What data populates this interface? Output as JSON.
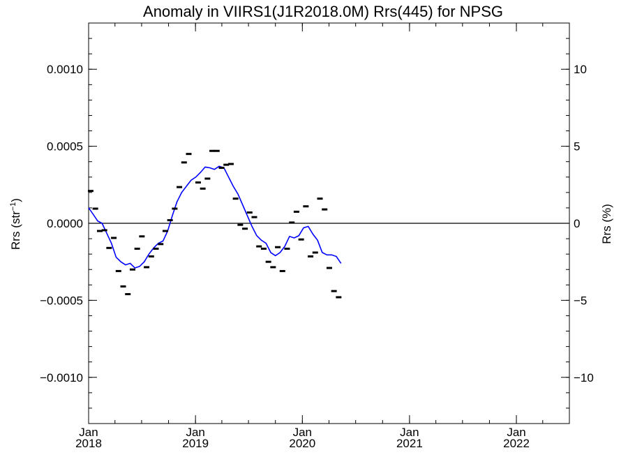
{
  "chart_data": {
    "type": "line",
    "title": "Anomaly in VIIRS1(J1R2018.0M) Rrs(445) for NPSG",
    "ylabel_left_base": "Rrs (str",
    "ylabel_left_sup": "−1",
    "ylabel_left_close": ")",
    "ylabel_right": "Rrs (%)",
    "x_range": [
      "2018-01-01",
      "2022-07-01"
    ],
    "ylim_left": [
      -0.0013,
      0.0013
    ],
    "ylim_right": [
      -13,
      13
    ],
    "x_ticks": [
      {
        "date": "2018-01-01",
        "month": "Jan",
        "year": "2018"
      },
      {
        "date": "2019-01-01",
        "month": "Jan",
        "year": "2019"
      },
      {
        "date": "2020-01-01",
        "month": "Jan",
        "year": "2020"
      },
      {
        "date": "2021-01-01",
        "month": "Jan",
        "year": "2021"
      },
      {
        "date": "2022-01-01",
        "month": "Jan",
        "year": "2022"
      }
    ],
    "y_ticks_left": [
      {
        "value": 0.001,
        "label": "0.0010"
      },
      {
        "value": 0.0005,
        "label": "0.0005"
      },
      {
        "value": 0.0,
        "label": "0.0000"
      },
      {
        "value": -0.0005,
        "label": "−0.0005"
      },
      {
        "value": -0.001,
        "label": "−0.0010"
      }
    ],
    "y_ticks_right": [
      {
        "value": 10,
        "label": "10"
      },
      {
        "value": 5,
        "label": "5"
      },
      {
        "value": 0,
        "label": "0"
      },
      {
        "value": -5,
        "label": "−5"
      },
      {
        "value": -10,
        "label": "−10"
      }
    ],
    "zero_line": true,
    "grid": false,
    "series": [
      {
        "style": "markers",
        "color": "#000000",
        "points": [
          {
            "x": "2018-01-08",
            "y": 0.00021
          },
          {
            "x": "2018-01-24",
            "y": 9.5e-05
          },
          {
            "x": "2018-02-08",
            "y": -5e-05
          },
          {
            "x": "2018-02-24",
            "y": -4.5e-05
          },
          {
            "x": "2018-03-12",
            "y": -0.00016
          },
          {
            "x": "2018-03-28",
            "y": -9.5e-05
          },
          {
            "x": "2018-04-13",
            "y": -0.00031
          },
          {
            "x": "2018-04-29",
            "y": -0.00041
          },
          {
            "x": "2018-05-15",
            "y": -0.00046
          },
          {
            "x": "2018-05-31",
            "y": -0.0003
          },
          {
            "x": "2018-06-16",
            "y": -0.000165
          },
          {
            "x": "2018-07-02",
            "y": -8.5e-05
          },
          {
            "x": "2018-07-18",
            "y": -0.000285
          },
          {
            "x": "2018-08-03",
            "y": -0.000215
          },
          {
            "x": "2018-08-19",
            "y": -0.000165
          },
          {
            "x": "2018-09-04",
            "y": -0.000135
          },
          {
            "x": "2018-09-20",
            "y": -5e-05
          },
          {
            "x": "2018-10-06",
            "y": 2e-05
          },
          {
            "x": "2018-10-22",
            "y": 9.5e-05
          },
          {
            "x": "2018-11-07",
            "y": 0.000235
          },
          {
            "x": "2018-11-23",
            "y": 0.000395
          },
          {
            "x": "2018-12-09",
            "y": 0.00045
          },
          {
            "x": "2019-01-10",
            "y": 0.000265
          },
          {
            "x": "2019-01-26",
            "y": 0.000225
          },
          {
            "x": "2019-02-11",
            "y": 0.00029
          },
          {
            "x": "2019-02-27",
            "y": 0.00047
          },
          {
            "x": "2019-03-15",
            "y": 0.00047
          },
          {
            "x": "2019-03-31",
            "y": 0.00036
          },
          {
            "x": "2019-04-16",
            "y": 0.00038
          },
          {
            "x": "2019-05-02",
            "y": 0.000385
          },
          {
            "x": "2019-05-18",
            "y": 0.00016
          },
          {
            "x": "2019-06-03",
            "y": -1e-05
          },
          {
            "x": "2019-06-19",
            "y": -3.5e-05
          },
          {
            "x": "2019-07-05",
            "y": 7e-05
          },
          {
            "x": "2019-07-21",
            "y": 4e-05
          },
          {
            "x": "2019-08-06",
            "y": -0.00015
          },
          {
            "x": "2019-08-22",
            "y": -0.000165
          },
          {
            "x": "2019-09-07",
            "y": -0.00025
          },
          {
            "x": "2019-09-23",
            "y": -0.000285
          },
          {
            "x": "2019-10-09",
            "y": -0.000155
          },
          {
            "x": "2019-10-25",
            "y": -0.00031
          },
          {
            "x": "2019-11-10",
            "y": -0.000165
          },
          {
            "x": "2019-11-26",
            "y": 5e-06
          },
          {
            "x": "2019-12-12",
            "y": 7.5e-05
          },
          {
            "x": "2019-12-28",
            "y": -0.000105
          },
          {
            "x": "2020-01-13",
            "y": 0.00011
          },
          {
            "x": "2020-01-29",
            "y": -0.000215
          },
          {
            "x": "2020-02-14",
            "y": -0.00019
          },
          {
            "x": "2020-03-01",
            "y": 0.00016
          },
          {
            "x": "2020-03-17",
            "y": 9e-05
          },
          {
            "x": "2020-04-02",
            "y": -0.00029
          },
          {
            "x": "2020-04-18",
            "y": -0.00044
          },
          {
            "x": "2020-05-04",
            "y": -0.00048
          }
        ]
      },
      {
        "style": "line",
        "color": "#0000ff",
        "points": [
          {
            "x": "2018-01-01",
            "y": 0.0001
          },
          {
            "x": "2018-01-16",
            "y": 6e-05
          },
          {
            "x": "2018-02-01",
            "y": 1.5e-05
          },
          {
            "x": "2018-02-16",
            "y": 0.0
          },
          {
            "x": "2018-03-04",
            "y": -6.5e-05
          },
          {
            "x": "2018-03-20",
            "y": -0.00013
          },
          {
            "x": "2018-04-05",
            "y": -0.00022
          },
          {
            "x": "2018-04-21",
            "y": -0.00025
          },
          {
            "x": "2018-05-07",
            "y": -0.00027
          },
          {
            "x": "2018-05-23",
            "y": -0.00026
          },
          {
            "x": "2018-06-08",
            "y": -0.00029
          },
          {
            "x": "2018-06-24",
            "y": -0.00028
          },
          {
            "x": "2018-07-10",
            "y": -0.00025
          },
          {
            "x": "2018-07-26",
            "y": -0.0002
          },
          {
            "x": "2018-08-11",
            "y": -0.00016
          },
          {
            "x": "2018-08-27",
            "y": -0.00013
          },
          {
            "x": "2018-09-12",
            "y": -0.000115
          },
          {
            "x": "2018-09-28",
            "y": -5e-05
          },
          {
            "x": "2018-10-14",
            "y": 5e-05
          },
          {
            "x": "2018-10-30",
            "y": 0.00014
          },
          {
            "x": "2018-11-15",
            "y": 0.0002
          },
          {
            "x": "2018-12-01",
            "y": 0.00024
          },
          {
            "x": "2018-12-17",
            "y": 0.00028
          },
          {
            "x": "2019-01-02",
            "y": 0.0003
          },
          {
            "x": "2019-01-18",
            "y": 0.00033
          },
          {
            "x": "2019-02-03",
            "y": 0.000365
          },
          {
            "x": "2019-02-19",
            "y": 0.00036
          },
          {
            "x": "2019-03-07",
            "y": 0.00035
          },
          {
            "x": "2019-03-23",
            "y": 0.00037
          },
          {
            "x": "2019-04-08",
            "y": 0.00036
          },
          {
            "x": "2019-04-24",
            "y": 0.0003
          },
          {
            "x": "2019-05-10",
            "y": 0.00024
          },
          {
            "x": "2019-05-26",
            "y": 0.00019
          },
          {
            "x": "2019-06-11",
            "y": 0.00012
          },
          {
            "x": "2019-06-27",
            "y": 5e-05
          },
          {
            "x": "2019-07-13",
            "y": -2e-05
          },
          {
            "x": "2019-07-29",
            "y": -8e-05
          },
          {
            "x": "2019-08-14",
            "y": -0.00011
          },
          {
            "x": "2019-08-30",
            "y": -0.00013
          },
          {
            "x": "2019-09-15",
            "y": -0.00019
          },
          {
            "x": "2019-10-01",
            "y": -0.00021
          },
          {
            "x": "2019-10-17",
            "y": -0.00019
          },
          {
            "x": "2019-11-02",
            "y": -0.00015
          },
          {
            "x": "2019-11-18",
            "y": -8.5e-05
          },
          {
            "x": "2019-12-04",
            "y": -9.5e-05
          },
          {
            "x": "2019-12-20",
            "y": -8e-05
          },
          {
            "x": "2020-01-05",
            "y": -3e-05
          },
          {
            "x": "2020-01-21",
            "y": -2e-05
          },
          {
            "x": "2020-02-06",
            "y": -7e-05
          },
          {
            "x": "2020-02-22",
            "y": -0.00011
          },
          {
            "x": "2020-03-09",
            "y": -0.00019
          },
          {
            "x": "2020-03-25",
            "y": -0.000205
          },
          {
            "x": "2020-04-10",
            "y": -0.000205
          },
          {
            "x": "2020-04-26",
            "y": -0.000215
          },
          {
            "x": "2020-05-12",
            "y": -0.00026
          }
        ]
      }
    ]
  }
}
